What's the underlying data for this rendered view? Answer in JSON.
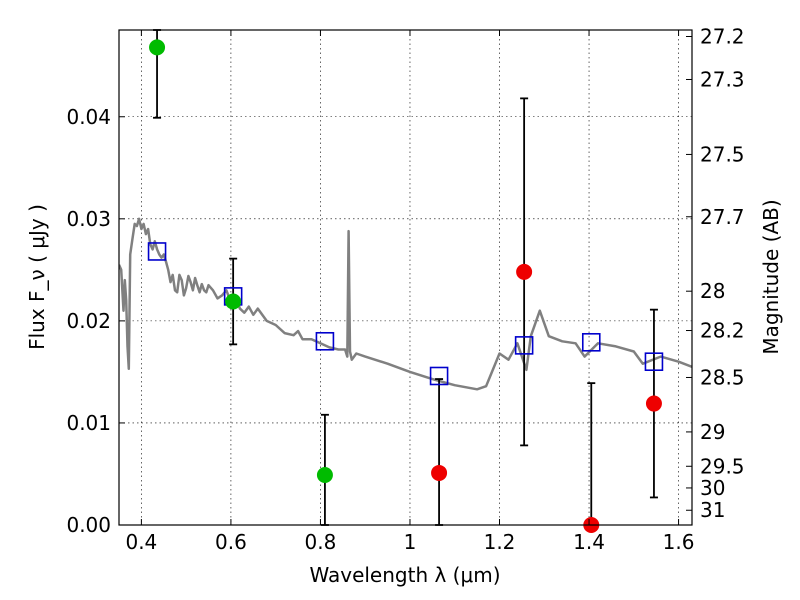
{
  "chart_data": {
    "type": "scatter",
    "xlabel": "Wavelength  λ (μm)",
    "ylabel": "Flux  F_ν  ( μJy )",
    "ylabel_right": "Magnitude (AB)",
    "xlim": [
      0.35,
      1.63
    ],
    "ylim": [
      0.0,
      0.0485
    ],
    "grid": true,
    "x_ticks": [
      0.4,
      0.6,
      0.8,
      1.0,
      1.2,
      1.4,
      1.6
    ],
    "x_tick_labels": [
      "0.4",
      "0.6",
      "0.8",
      "1",
      "1.2",
      "1.4",
      "1.6"
    ],
    "y_ticks": [
      0.0,
      0.01,
      0.02,
      0.03,
      0.04
    ],
    "y_tick_labels": [
      "0.00",
      "0.01",
      "0.02",
      "0.03",
      "0.04"
    ],
    "right_ticks": [
      {
        "label": "27.2",
        "mag": 27.2
      },
      {
        "label": "27.3",
        "mag": 27.3
      },
      {
        "label": "27.5",
        "mag": 27.5
      },
      {
        "label": "27.7",
        "mag": 27.7
      },
      {
        "label": "28",
        "mag": 28.0
      },
      {
        "label": "28.2",
        "mag": 28.2
      },
      {
        "label": "28.5",
        "mag": 28.5
      },
      {
        "label": "29",
        "mag": 29.0
      },
      {
        "label": "29.5",
        "mag": 29.5
      },
      {
        "label": "30",
        "mag": 30.0
      },
      {
        "label": "31",
        "mag": 31.0
      }
    ],
    "model_sed": {
      "color": "#808080",
      "x": [
        0.35,
        0.355,
        0.36,
        0.363,
        0.366,
        0.369,
        0.372,
        0.375,
        0.38,
        0.385,
        0.39,
        0.395,
        0.4,
        0.405,
        0.41,
        0.415,
        0.42,
        0.425,
        0.43,
        0.435,
        0.44,
        0.445,
        0.45,
        0.455,
        0.46,
        0.465,
        0.47,
        0.475,
        0.48,
        0.485,
        0.49,
        0.495,
        0.5,
        0.505,
        0.51,
        0.515,
        0.52,
        0.525,
        0.53,
        0.535,
        0.54,
        0.545,
        0.55,
        0.56,
        0.57,
        0.58,
        0.59,
        0.6,
        0.605,
        0.61,
        0.62,
        0.63,
        0.64,
        0.65,
        0.66,
        0.68,
        0.7,
        0.72,
        0.74,
        0.75,
        0.76,
        0.78,
        0.8,
        0.82,
        0.84,
        0.855,
        0.86,
        0.863,
        0.866,
        0.87,
        0.88,
        0.9,
        0.95,
        1.0,
        1.05,
        1.1,
        1.15,
        1.17,
        1.2,
        1.22,
        1.24,
        1.26,
        1.27,
        1.29,
        1.31,
        1.34,
        1.37,
        1.39,
        1.42,
        1.46,
        1.5,
        1.52,
        1.56,
        1.6,
        1.63
      ],
      "y": [
        0.0255,
        0.025,
        0.021,
        0.024,
        0.022,
        0.0175,
        0.0153,
        0.0265,
        0.028,
        0.0295,
        0.0293,
        0.03,
        0.029,
        0.0295,
        0.0285,
        0.029,
        0.0275,
        0.027,
        0.0278,
        0.027,
        0.0265,
        0.0262,
        0.0265,
        0.0258,
        0.025,
        0.0238,
        0.0245,
        0.023,
        0.0228,
        0.0245,
        0.024,
        0.0225,
        0.0232,
        0.0244,
        0.0238,
        0.023,
        0.0242,
        0.0235,
        0.0228,
        0.0236,
        0.023,
        0.0228,
        0.0235,
        0.023,
        0.0222,
        0.0225,
        0.023,
        0.0218,
        0.0212,
        0.0225,
        0.0212,
        0.0208,
        0.0214,
        0.0206,
        0.0212,
        0.02,
        0.0196,
        0.0188,
        0.0186,
        0.019,
        0.0182,
        0.0182,
        0.0178,
        0.0174,
        0.0172,
        0.0172,
        0.0165,
        0.0288,
        0.017,
        0.0162,
        0.0168,
        0.0165,
        0.0158,
        0.015,
        0.0143,
        0.0137,
        0.0133,
        0.0136,
        0.0168,
        0.0162,
        0.0178,
        0.0152,
        0.0185,
        0.021,
        0.0185,
        0.018,
        0.0178,
        0.0165,
        0.0178,
        0.0175,
        0.017,
        0.0158,
        0.0165,
        0.016,
        0.0155
      ]
    },
    "model_photometry": {
      "color": "#0000cc",
      "x": [
        0.435,
        0.605,
        0.81,
        1.065,
        1.255,
        1.405,
        1.545
      ],
      "y": [
        0.0268,
        0.0224,
        0.018,
        0.0146,
        0.0176,
        0.0179,
        0.016
      ]
    },
    "observed": {
      "x": [
        0.435,
        0.605,
        0.81,
        1.065,
        1.255,
        1.405,
        1.545
      ],
      "y": [
        0.0468,
        0.0219,
        0.0049,
        0.0051,
        0.0248,
        0.0,
        0.0119
      ],
      "err_low": [
        0.0399,
        0.0177,
        0.0,
        0.0,
        0.0078,
        0.0,
        0.0027
      ],
      "err_high": [
        0.0485,
        0.0261,
        0.0108,
        0.0143,
        0.0418,
        0.0139,
        0.0211
      ],
      "colors": [
        "#00bb00",
        "#00bb00",
        "#00bb00",
        "#ee0000",
        "#ee0000",
        "#ee0000",
        "#ee0000"
      ]
    }
  }
}
